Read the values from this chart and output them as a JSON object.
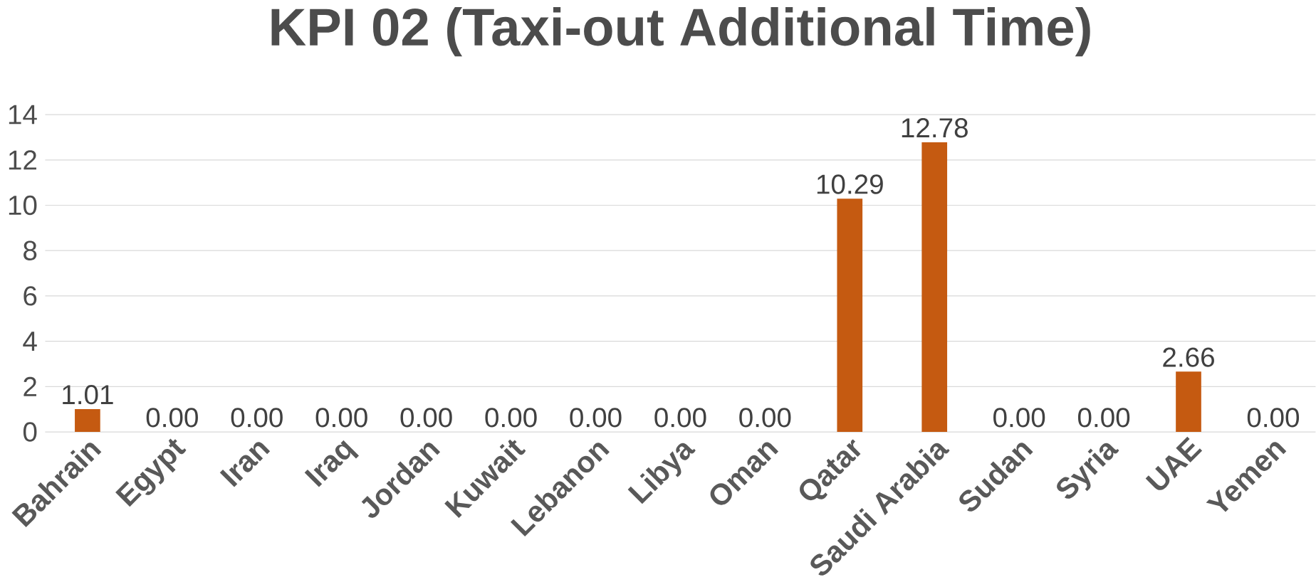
{
  "chart_data": {
    "type": "bar",
    "title": "KPI 02 (Taxi-out Additional Time)",
    "categories": [
      "Bahrain",
      "Egypt",
      "Iran",
      "Iraq",
      "Jordan",
      "Kuwait",
      "Lebanon",
      "Libya",
      "Oman",
      "Qatar",
      "Saudi Arabia",
      "Sudan",
      "Syria",
      "UAE",
      "Yemen"
    ],
    "values": [
      1.01,
      0,
      0,
      0,
      0,
      0,
      0,
      0,
      0,
      10.29,
      12.78,
      0,
      0,
      2.66,
      0
    ],
    "value_labels": [
      "1.01",
      "0.00",
      "0.00",
      "0.00",
      "0.00",
      "0.00",
      "0.00",
      "0.00",
      "0.00",
      "10.29",
      "12.78",
      "0.00",
      "0.00",
      "2.66",
      "0.00"
    ],
    "color": "#c55a11",
    "ylim": [
      0,
      14
    ],
    "yticks": [
      0,
      2,
      4,
      6,
      8,
      10,
      12,
      14
    ],
    "grid": "y"
  }
}
